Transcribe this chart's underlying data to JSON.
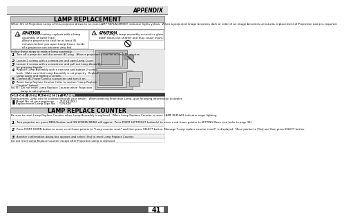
{
  "page_bg": "#ffffff",
  "top_bar_color": "#d8d8d8",
  "title": "APPENDIX",
  "page_number": "41",
  "lamp_replacement_title": "LAMP REPLACEMENT",
  "lamp_replacement_intro": "When life of Projection Lamp of this projector draws to an end, LAMP REPLACEMENT indicator lights yellow.  When a projected image becomes dark or color of an image becomes unnatural, replacement of Projection Lamp is required.",
  "caution1_title": "CAUTION",
  "caution1_text": "For continued safety, replace with a lamp\nassembly of same type.\nAllow a projector to cool for at least 45\nminutes before you open Lamp Cover. Inside\nof a projector can become very hot.",
  "caution2_title": "CAUTION",
  "caution2_text": "Do not drop a lamp assembly or touch a glass\nbulb! Glass can shatter and may cause injury.",
  "follow_text": "Follow these steps to replace lamp assembly.",
  "steps": [
    "Turn off a projector and disconnect AC plug.  Allow a projector to cool for at least 45 minutes.",
    "Loosen 2 screws with a screwdriver and open Lamp Cover.",
    "Loosen 2 screws with a screwdriver and pull out Lamp Assembly\nby grasping Handle.",
    "Replace Lamp Assembly with a new one and tighten 2 screws\nback.  Make sure that Lamp Assembly is set properly.  Replace\nLamp Cover and tighten 2 screws.",
    "Connect AC Power Cord to a projector and turn it on.",
    "Reset Lamp Replace Counter (refer to section \"Lamp Replace\nCounter\" below)."
  ],
  "note_text": "NOTE : Do not reset Lamp Replace Counter when Projection\n           Lamp is not replaced.",
  "order_title": "ORDER REPLACEMENT LAMP",
  "order_text": "Replacement Lamp can be ordered through your dealer.  When ordering Projection Lamp, give following information to dealer.",
  "order_model": "Model No. of your projector    :  TLP-X4100U",
  "order_lamp": "Replacement Lamp Type No. :  TLPLX40",
  "counter_title": "LAMP REPLACE COUNTER",
  "counter_intro": "Be sure to reset Lamp Replace Counter when Lamp Assembly is replaced.  When Lamp Replace Counter is reset, LAMP REPLACE indicator stops lighting.",
  "counter_steps": [
    "Turn projector on, press MENU button and ON-SCREEN MENU will appear.  Press POINT LEFT/RIGHT button(s) to move a red frame pointer to SETTING Menu icon (refer to page 36).",
    "Press POINT DOWN button to move a red frame pointer to \"Lamp counter reset\" and then press SELECT button. Message \"Lamp replace counter reset?\" is displayed.  Move pointer to [Yes] and then press SELECT button.",
    "Another confirmation dialog box appears and select [Yes] to reset Lamp Replace Counter."
  ],
  "counter_note": "Do not reset Lamp Replace Counter except after Projection Lamp is replaced.",
  "bottom_bar_color": "#5a5a5a"
}
